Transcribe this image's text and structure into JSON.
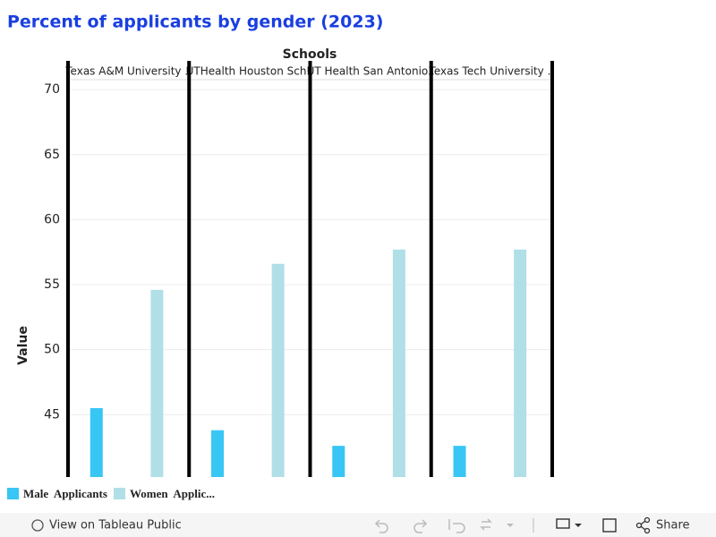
{
  "chart_data": {
    "type": "bar",
    "title": "Percent of applicants by gender (2023)",
    "xlabel": "Schools",
    "ylabel": "Value",
    "categories": [
      "Texas A&M University ..",
      "UTHealth Houston Sch..",
      "UT Health San Antonio..",
      "Texas Tech University .."
    ],
    "series": [
      {
        "name": "Male  Applicants",
        "color": "#38c6f4",
        "values": [
          45.5,
          43.8,
          42.6,
          42.6
        ]
      },
      {
        "name": "Women  Applic...",
        "color": "#b0dfe8",
        "values": [
          54.6,
          56.6,
          57.7,
          57.7
        ]
      }
    ],
    "ylim": [
      40.2,
      70.7
    ],
    "yticks": [
      45,
      50,
      55,
      60,
      65,
      70
    ],
    "grid": true
  },
  "toolbar": {
    "view": "View on Tableau Public",
    "share": "Share"
  }
}
